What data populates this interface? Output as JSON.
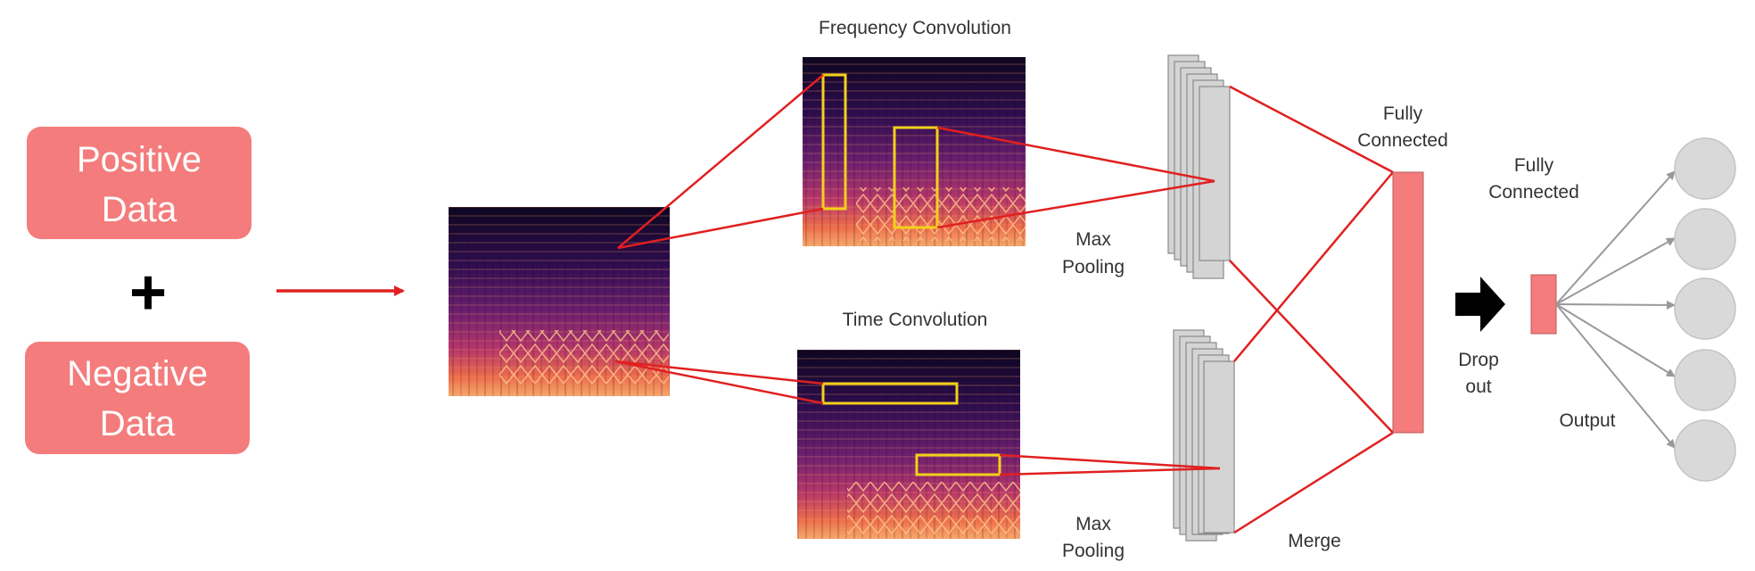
{
  "inputs": {
    "positive": [
      "Positive",
      "Data"
    ],
    "plus": "+",
    "negative": [
      "Negative",
      "Data"
    ]
  },
  "labels": {
    "freq_conv": "Frequency Convolution",
    "time_conv": "Time Convolution",
    "max_pool_top": [
      "Max",
      "Pooling"
    ],
    "max_pool_bottom": [
      "Max",
      "Pooling"
    ],
    "fc1": [
      "Fully",
      "Connected"
    ],
    "fc2": [
      "Fully",
      "Connected"
    ],
    "dropout": [
      "Drop",
      "out"
    ],
    "merge": "Merge",
    "output": "Output"
  },
  "colors": {
    "input_box": "#f47c7c",
    "connector": "#e02020",
    "filter_box": "#f2d21a",
    "feature_map": "#d4d4d4",
    "fc_layer": "#f47c7c",
    "output_node": "#d9d9d9",
    "output_arrow": "#999999"
  },
  "output_nodes": 5
}
